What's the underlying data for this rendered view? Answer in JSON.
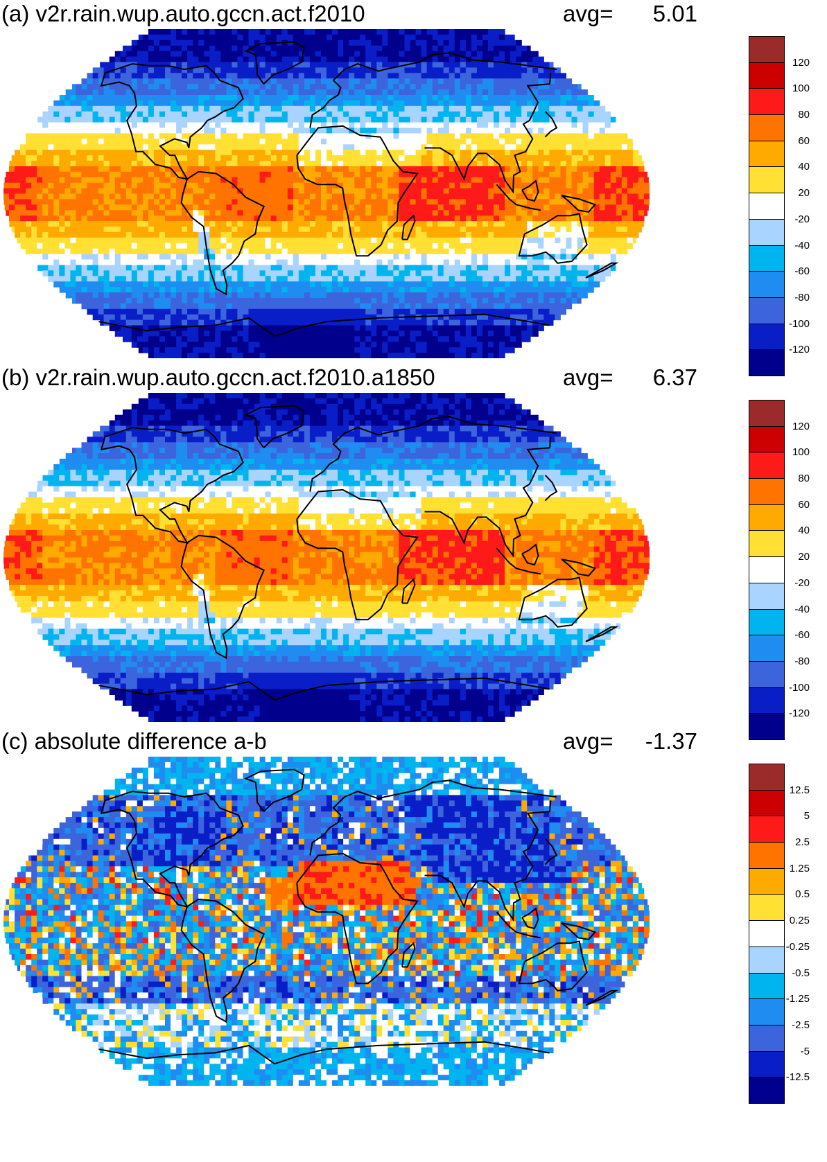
{
  "panels": [
    {
      "id": "a",
      "title": "(a) v2r.rain.wup.auto.gccn.act.f2010",
      "avg_label": "avg=",
      "avg_value": "5.01",
      "field_kind": "absolute",
      "colorbar_labels": [
        "120",
        "100",
        "80",
        "60",
        "40",
        "20",
        "-20",
        "-40",
        "-60",
        "-80",
        "-100",
        "-120"
      ]
    },
    {
      "id": "b",
      "title": "(b) v2r.rain.wup.auto.gccn.act.f2010.a1850",
      "avg_label": "avg=",
      "avg_value": "6.37",
      "field_kind": "absolute",
      "colorbar_labels": [
        "120",
        "100",
        "80",
        "60",
        "40",
        "20",
        "-20",
        "-40",
        "-60",
        "-80",
        "-100",
        "-120"
      ]
    },
    {
      "id": "c",
      "title": "(c) absolute difference a-b",
      "avg_label": "avg=",
      "avg_value": "-1.37",
      "field_kind": "difference",
      "colorbar_labels": [
        "12.5",
        "5",
        "2.5",
        "1.25",
        "0.5",
        "0.25",
        "-0.25",
        "-0.5",
        "-1.25",
        "-2.5",
        "-5",
        "-12.5"
      ]
    }
  ],
  "palette": [
    "#9b2a2a",
    "#cc0000",
    "#ff1a1a",
    "#ff7300",
    "#ffaa00",
    "#ffe033",
    "#ffffff",
    "#a8d4ff",
    "#00b4f0",
    "#1e8cf0",
    "#3c64dc",
    "#0a1ec8",
    "#00008c"
  ],
  "map_projection": "Robinson",
  "coastline_color": "#000000"
}
